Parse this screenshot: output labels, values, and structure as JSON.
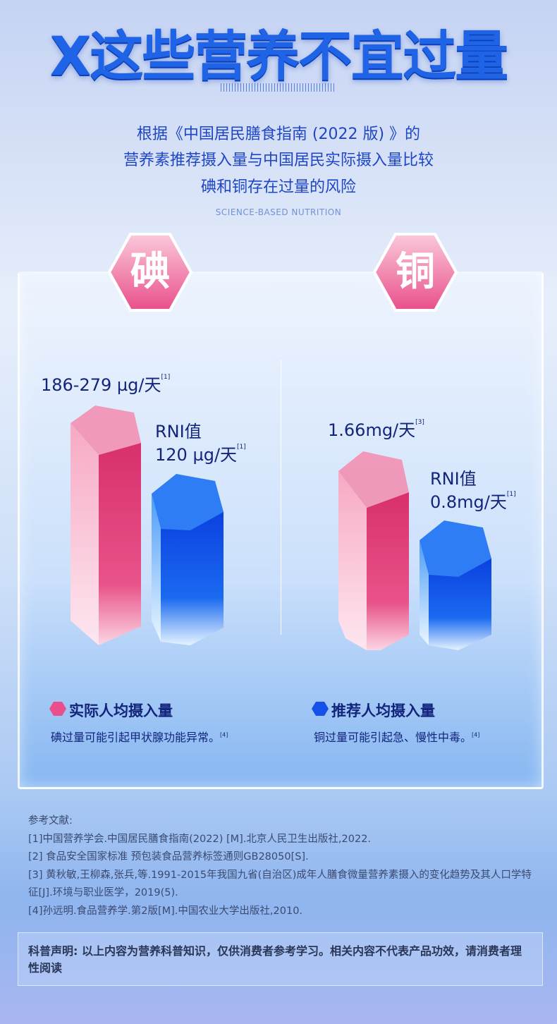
{
  "header": {
    "title": "X这些营养不宜过量",
    "lines": [
      "根据《中国居民膳食指南 (2022 版) 》的",
      "营养素推荐摄入量与中国居民实际摄入量比较",
      "碘和铜存在过量的风险"
    ],
    "tagline": "SCIENCE-BASED NUTRITION"
  },
  "colors": {
    "actual": "#e0407a",
    "recommended": "#1550e8",
    "text": "#13247c"
  },
  "nutrients": [
    {
      "name": "碘",
      "actual_label": "186-279 µg/天",
      "actual_ref": "[1]",
      "rni_title": "RNI值",
      "rni_label": "120 µg/天",
      "rni_ref": "[1]",
      "actual_value": [
        186,
        279
      ],
      "rni_value": 120,
      "unit": "µg/天",
      "note": "碘过量可能引起甲状腺功能异常。",
      "note_ref": "[4]"
    },
    {
      "name": "铜",
      "actual_label": "1.66mg/天",
      "actual_ref": "[3]",
      "rni_title": "RNI值",
      "rni_label": "0.8mg/天",
      "rni_ref": "[1]",
      "actual_value": 1.66,
      "rni_value": 0.8,
      "unit": "mg/天",
      "note": "铜过量可能引起急、慢性中毒。",
      "note_ref": "[4]"
    }
  ],
  "legend": {
    "actual": "实际人均摄入量",
    "recommended": "推荐人均摄入量"
  },
  "references": {
    "title": "参考文献:",
    "items": [
      "[1]中国营养学会.中国居民膳食指南(2022) [M].北京人民卫生出版社,2022.",
      "[2] 食品安全国家标准 预包装食品营养标签通则GB28050[S].",
      "[3] 黄秋敏,王柳森,张兵,等.1991-2015年我国九省(自治区)成年人膳食微量营养素摄入的变化趋势及其人口学特征[J].环境与职业医学，2019(5).",
      "[4]孙远明.食品营养学.第2版[M].中国农业大学出版社,2010."
    ]
  },
  "disclaimer": "科普声明: 以上内容为营养科普知识，仅供消费者参考学习。相关内容不代表产品功效，请消费者理性阅读"
}
